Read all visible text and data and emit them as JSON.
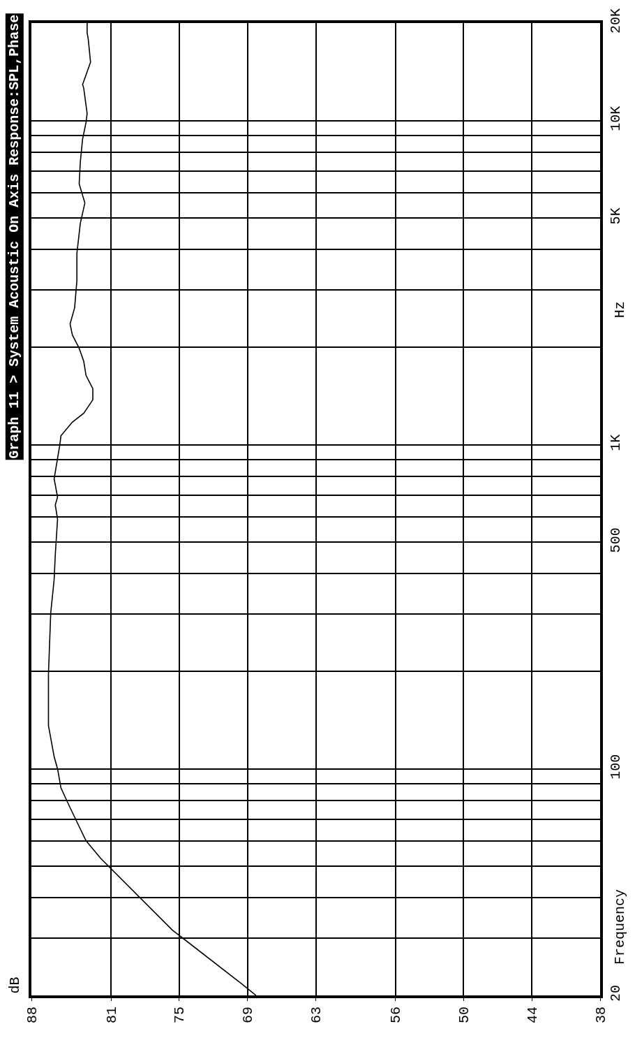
{
  "chart_data": {
    "type": "line",
    "title": "Graph 11 > System Acoustic On Axis Response:SPL,Phase",
    "ylabel": "Frequency",
    "annotations": [
      "Hz",
      "dB"
    ],
    "log": "y",
    "grid": true,
    "marker": "none",
    "line_style": "solid",
    "xlim": [
      88,
      38
    ],
    "ylim": [
      20,
      20000
    ],
    "xticks": [
      88,
      81,
      75,
      69,
      63,
      56,
      50,
      44,
      38
    ],
    "yticks": [
      20,
      {
        "value": 30,
        "label": null
      },
      {
        "value": 40,
        "label": null
      },
      {
        "value": 50,
        "label": null
      },
      {
        "value": 60,
        "label": null
      },
      {
        "value": 70,
        "label": null
      },
      {
        "value": 80,
        "label": null
      },
      {
        "value": 90,
        "label": null
      },
      100,
      {
        "value": 200,
        "label": null
      },
      {
        "value": 300,
        "label": null
      },
      {
        "value": 400,
        "label": null
      },
      500,
      {
        "value": 600,
        "label": null
      },
      {
        "value": 700,
        "label": null
      },
      {
        "value": 800,
        "label": null
      },
      {
        "value": 900,
        "label": null
      },
      {
        "value": 1000,
        "label": "1K"
      },
      {
        "value": 2000,
        "label": null
      },
      {
        "value": 3000,
        "label": null
      },
      {
        "value": 4000,
        "label": null
      },
      {
        "value": 5000,
        "label": "5K"
      },
      {
        "value": 6000,
        "label": null
      },
      {
        "value": 7000,
        "label": null
      },
      {
        "value": 8000,
        "label": null
      },
      {
        "value": 9000,
        "label": null
      },
      {
        "value": 10000,
        "label": "10K"
      },
      {
        "value": 20000,
        "label": "20K"
      }
    ],
    "x": [
      68.25,
      69.5,
      75.6,
      81.9,
      83.2,
      84.6,
      85.4,
      85.7,
      86.0,
      86.5,
      86.5,
      86.5,
      86.3,
      86.0,
      85.9,
      85.7,
      85.9,
      85.7,
      86.0,
      85.5,
      85.4,
      84.4,
      83.4,
      82.6,
      82.6,
      83.2,
      83.4,
      83.8,
      84.4,
      84.6,
      84.2,
      84.0,
      84.0,
      83.7,
      83.3,
      83.8,
      83.7,
      83.5,
      83.2,
      83.1,
      83.4,
      83.5,
      82.8,
      83.0,
      83.1,
      83.1
    ],
    "series": [
      {
        "color": "#000000",
        "values": [
          20,
          21.7,
          31.8,
          52.9,
          60,
          75.9,
          87.3,
          100,
          109,
          136,
          160,
          196,
          303,
          384,
          458,
          589,
          652,
          689,
          785,
          1000,
          1066,
          1174,
          1250,
          1376,
          1490,
          1637,
          1810,
          1984,
          2182,
          2358,
          2646,
          3210,
          3895,
          4818,
          5571,
          6382,
          7450,
          8768,
          9850,
          10520,
          12600,
          12920,
          15140,
          17800,
          18660,
          20000
        ]
      }
    ]
  }
}
